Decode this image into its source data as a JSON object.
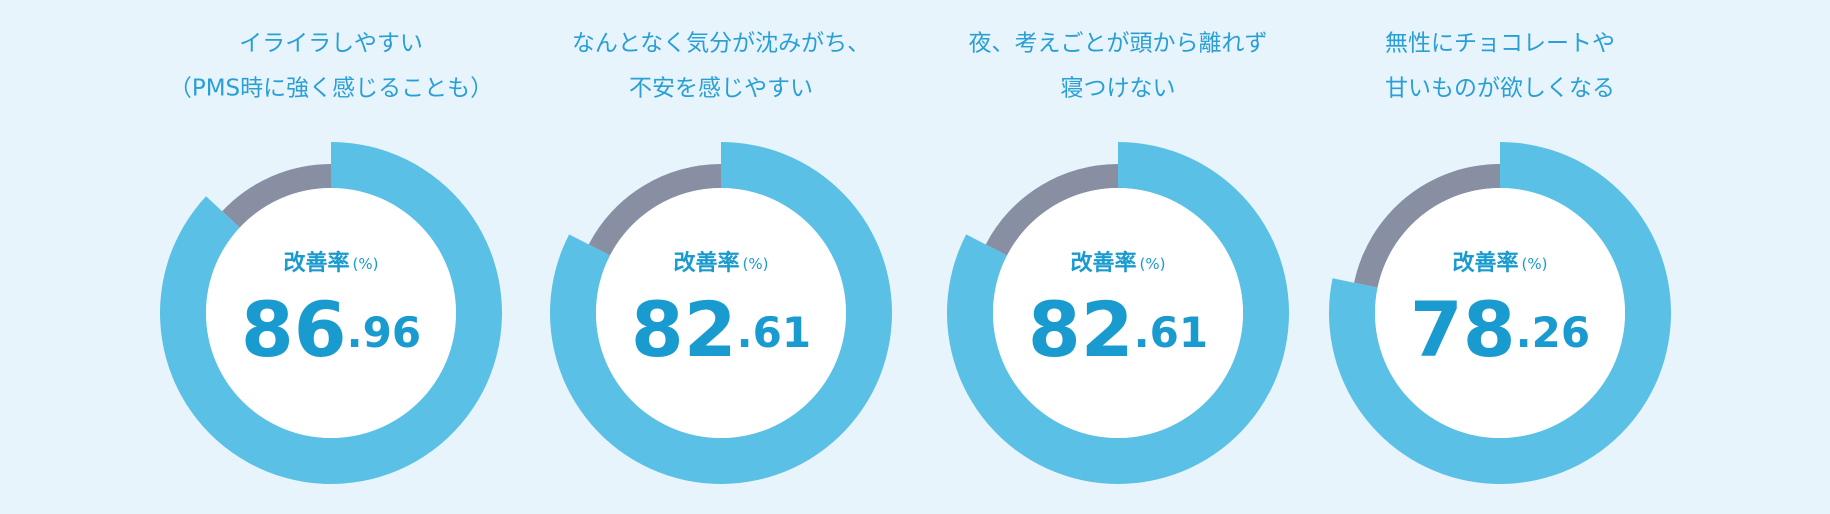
{
  "chart_data": [
    {
      "type": "donut",
      "title": [
        "イライラしやすい",
        "（PMS時に強く感じることも）"
      ],
      "label": "改善率",
      "unit": "(%)",
      "value": 86.96,
      "color": "#5bc0e6",
      "rest_color": "#888fa3"
    },
    {
      "type": "donut",
      "title": [
        "なんとなく気分が沈みがち、",
        "不安を感じやすい"
      ],
      "label": "改善率",
      "unit": "(%)",
      "value": 82.61,
      "color": "#5bc0e6",
      "rest_color": "#888fa3"
    },
    {
      "type": "donut",
      "title": [
        "夜、考えごとが頭から離れず",
        "寝つけない"
      ],
      "label": "改善率",
      "unit": "(%)",
      "value": 82.61,
      "color": "#5bc0e6",
      "rest_color": "#888fa3"
    },
    {
      "type": "donut",
      "title": [
        "無性にチョコレートや",
        "甘いものが欲しくなる"
      ],
      "label": "改善率",
      "unit": "(%)",
      "value": 78.26,
      "color": "#5bc0e6",
      "rest_color": "#888fa3"
    }
  ]
}
